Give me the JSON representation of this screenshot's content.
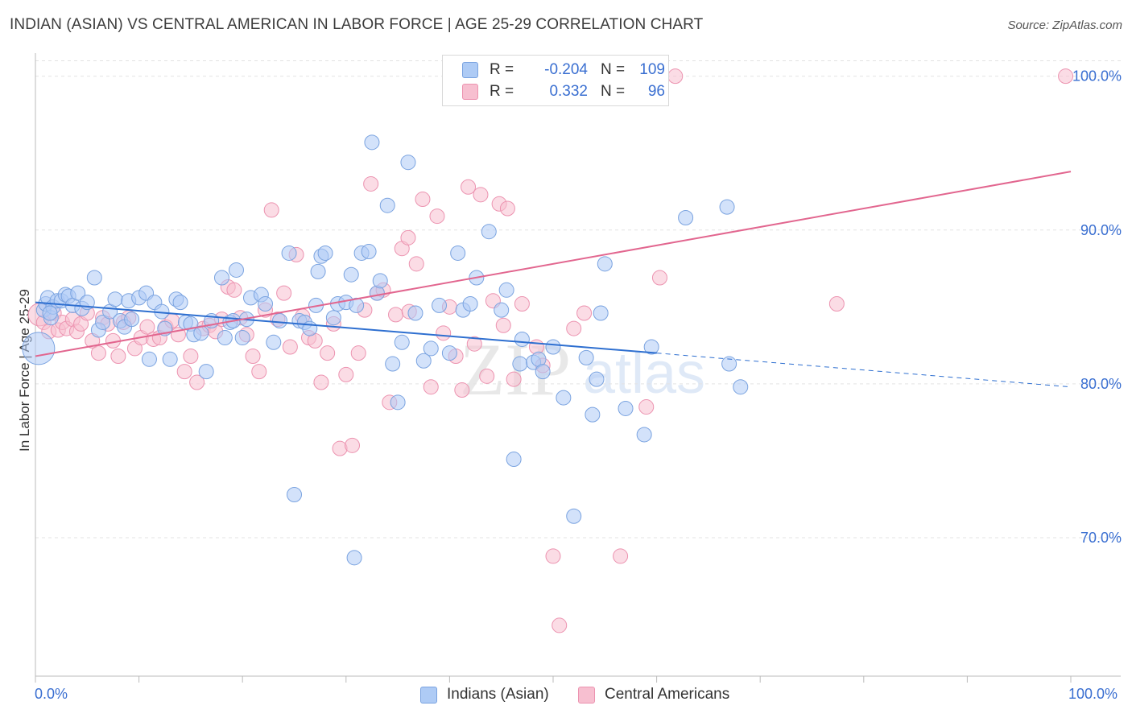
{
  "title": "INDIAN (ASIAN) VS CENTRAL AMERICAN IN LABOR FORCE | AGE 25-29 CORRELATION CHART",
  "source": "Source: ZipAtlas.com",
  "watermark": {
    "zip": "ZIP",
    "atlas": "atlas"
  },
  "colors": {
    "blue_fill": "#aecbf5",
    "blue_stroke": "#7aa3e0",
    "blue_line": "#2e6fd0",
    "pink_fill": "#f7bfd0",
    "pink_stroke": "#ec93b0",
    "pink_line": "#e2668f",
    "axis_text": "#3a6fd1",
    "grid": "#e3e3e3"
  },
  "legend_top": {
    "rows": [
      {
        "r_label": "R =",
        "r_value": "-0.204",
        "n_label": "N =",
        "n_value": "109"
      },
      {
        "r_label": "R =",
        "r_value": "0.332",
        "n_label": "N =",
        "n_value": "96"
      }
    ]
  },
  "legend_bottom": [
    "Indians (Asian)",
    "Central Americans"
  ],
  "chart_data": {
    "type": "scatter",
    "xlabel": "",
    "ylabel": "In Labor Force | Age 25-29",
    "xlim": [
      0,
      100
    ],
    "ylim": [
      61,
      101.5
    ],
    "x_tick_labels": [
      "0.0%",
      "100.0%"
    ],
    "y_ticks": [
      70,
      80,
      90,
      100
    ],
    "y_tick_labels": [
      "70.0%",
      "80.0%",
      "90.0%",
      "100.0%"
    ],
    "grid": true,
    "series": [
      {
        "name": "Indians (Asian)",
        "r": -0.204,
        "n": 109,
        "trend": {
          "x0": 0,
          "y0": 85.3,
          "x1": 60,
          "y1": 82.0,
          "dash_to_x": 100,
          "dash_to_y": 79.8
        },
        "points": [
          [
            0.3,
            82.3
          ],
          [
            0.8,
            84.8
          ],
          [
            1.0,
            85.2
          ],
          [
            1.2,
            85.6
          ],
          [
            1.5,
            84.3
          ],
          [
            1.7,
            85.0
          ],
          [
            2.1,
            85.4
          ],
          [
            2.5,
            85.4
          ],
          [
            2.9,
            85.8
          ],
          [
            3.2,
            85.7
          ],
          [
            3.6,
            85.1
          ],
          [
            4.1,
            85.9
          ],
          [
            4.5,
            84.9
          ],
          [
            5.0,
            85.3
          ],
          [
            5.7,
            86.9
          ],
          [
            6.1,
            83.5
          ],
          [
            6.5,
            84.0
          ],
          [
            7.2,
            84.7
          ],
          [
            7.7,
            85.5
          ],
          [
            8.2,
            84.1
          ],
          [
            8.6,
            83.7
          ],
          [
            9.0,
            85.4
          ],
          [
            9.3,
            84.2
          ],
          [
            10.0,
            85.6
          ],
          [
            10.7,
            85.9
          ],
          [
            11.0,
            81.6
          ],
          [
            11.5,
            85.3
          ],
          [
            12.2,
            84.7
          ],
          [
            13.0,
            81.6
          ],
          [
            13.6,
            85.5
          ],
          [
            14.0,
            85.3
          ],
          [
            14.5,
            84.0
          ],
          [
            15.0,
            83.9
          ],
          [
            15.3,
            83.2
          ],
          [
            16.0,
            83.3
          ],
          [
            16.5,
            80.8
          ],
          [
            17.0,
            84.1
          ],
          [
            18.0,
            86.9
          ],
          [
            18.3,
            83.0
          ],
          [
            18.8,
            84.0
          ],
          [
            19.1,
            84.1
          ],
          [
            19.4,
            87.4
          ],
          [
            20.4,
            84.2
          ],
          [
            20.8,
            85.6
          ],
          [
            21.8,
            85.8
          ],
          [
            22.2,
            85.2
          ],
          [
            23.0,
            82.7
          ],
          [
            23.6,
            84.1
          ],
          [
            24.5,
            88.5
          ],
          [
            25.0,
            72.8
          ],
          [
            25.5,
            84.1
          ],
          [
            26.0,
            84.0
          ],
          [
            26.5,
            83.6
          ],
          [
            27.1,
            85.1
          ],
          [
            27.3,
            87.3
          ],
          [
            27.6,
            88.3
          ],
          [
            28.0,
            88.5
          ],
          [
            28.8,
            84.3
          ],
          [
            29.2,
            85.2
          ],
          [
            30.0,
            85.3
          ],
          [
            30.5,
            87.1
          ],
          [
            30.8,
            68.7
          ],
          [
            31.0,
            85.1
          ],
          [
            31.5,
            88.5
          ],
          [
            32.2,
            88.6
          ],
          [
            32.5,
            95.7
          ],
          [
            33.0,
            85.9
          ],
          [
            33.3,
            86.7
          ],
          [
            34.0,
            91.6
          ],
          [
            34.5,
            81.3
          ],
          [
            35.0,
            78.8
          ],
          [
            35.4,
            82.7
          ],
          [
            36.0,
            94.4
          ],
          [
            36.7,
            84.6
          ],
          [
            37.5,
            81.5
          ],
          [
            38.2,
            82.3
          ],
          [
            39.0,
            85.1
          ],
          [
            40.0,
            82.0
          ],
          [
            40.8,
            88.5
          ],
          [
            41.3,
            84.8
          ],
          [
            42.6,
            86.9
          ],
          [
            43.8,
            89.9
          ],
          [
            45.0,
            84.8
          ],
          [
            45.5,
            86.1
          ],
          [
            46.2,
            75.1
          ],
          [
            46.8,
            81.3
          ],
          [
            47.0,
            82.9
          ],
          [
            48.1,
            81.4
          ],
          [
            48.6,
            81.6
          ],
          [
            49.0,
            80.8
          ],
          [
            50.0,
            82.4
          ],
          [
            51.0,
            79.1
          ],
          [
            52.0,
            71.4
          ],
          [
            53.2,
            81.7
          ],
          [
            53.8,
            78.0
          ],
          [
            54.2,
            80.3
          ],
          [
            54.6,
            84.6
          ],
          [
            55.0,
            87.8
          ],
          [
            57.0,
            78.4
          ],
          [
            58.8,
            76.7
          ],
          [
            59.5,
            82.4
          ],
          [
            62.8,
            90.8
          ],
          [
            66.8,
            91.5
          ],
          [
            67.0,
            81.3
          ],
          [
            68.1,
            79.8
          ],
          [
            42.0,
            85.2
          ],
          [
            20.0,
            83.0
          ],
          [
            12.5,
            83.6
          ],
          [
            1.4,
            84.6
          ]
        ]
      },
      {
        "name": "Central Americans",
        "r": 0.332,
        "n": 96,
        "trend": {
          "x0": 0,
          "y0": 81.8,
          "x1": 100,
          "y1": 93.8
        },
        "points": [
          [
            0.4,
            84.5
          ],
          [
            0.8,
            84.0
          ],
          [
            1.3,
            83.4
          ],
          [
            1.8,
            84.6
          ],
          [
            2.2,
            83.5
          ],
          [
            2.6,
            84.0
          ],
          [
            3.0,
            83.6
          ],
          [
            3.6,
            84.2
          ],
          [
            4.0,
            83.4
          ],
          [
            4.4,
            83.9
          ],
          [
            5.0,
            84.6
          ],
          [
            5.5,
            82.8
          ],
          [
            6.1,
            82.0
          ],
          [
            6.5,
            84.3
          ],
          [
            7.0,
            83.9
          ],
          [
            7.5,
            82.8
          ],
          [
            8.0,
            81.8
          ],
          [
            8.5,
            84.0
          ],
          [
            9.0,
            84.3
          ],
          [
            9.6,
            82.3
          ],
          [
            10.2,
            83.0
          ],
          [
            10.8,
            83.7
          ],
          [
            11.4,
            82.9
          ],
          [
            12.0,
            83.0
          ],
          [
            12.6,
            83.7
          ],
          [
            13.2,
            84.1
          ],
          [
            13.8,
            83.2
          ],
          [
            14.4,
            80.8
          ],
          [
            15.0,
            81.8
          ],
          [
            15.6,
            80.1
          ],
          [
            16.2,
            83.6
          ],
          [
            16.8,
            83.8
          ],
          [
            17.4,
            83.4
          ],
          [
            18.0,
            84.2
          ],
          [
            18.6,
            86.3
          ],
          [
            19.2,
            86.1
          ],
          [
            19.8,
            84.3
          ],
          [
            20.4,
            83.2
          ],
          [
            21.0,
            81.8
          ],
          [
            21.6,
            80.8
          ],
          [
            22.2,
            84.8
          ],
          [
            22.8,
            91.3
          ],
          [
            23.4,
            84.2
          ],
          [
            24.0,
            85.9
          ],
          [
            24.6,
            82.4
          ],
          [
            25.2,
            88.4
          ],
          [
            25.8,
            84.4
          ],
          [
            26.4,
            83.0
          ],
          [
            27.0,
            82.8
          ],
          [
            27.6,
            80.1
          ],
          [
            28.2,
            82.0
          ],
          [
            28.8,
            83.9
          ],
          [
            29.4,
            75.8
          ],
          [
            30.0,
            80.6
          ],
          [
            30.6,
            76.0
          ],
          [
            31.2,
            82.0
          ],
          [
            31.8,
            84.8
          ],
          [
            32.4,
            93.0
          ],
          [
            33.0,
            85.9
          ],
          [
            33.6,
            86.1
          ],
          [
            34.2,
            78.8
          ],
          [
            34.8,
            84.5
          ],
          [
            35.4,
            88.8
          ],
          [
            36.0,
            89.5
          ],
          [
            36.8,
            87.8
          ],
          [
            37.4,
            92.0
          ],
          [
            38.2,
            79.8
          ],
          [
            38.8,
            90.9
          ],
          [
            39.4,
            83.3
          ],
          [
            40.0,
            85.0
          ],
          [
            40.6,
            81.8
          ],
          [
            41.2,
            79.6
          ],
          [
            41.8,
            92.8
          ],
          [
            42.4,
            82.6
          ],
          [
            43.0,
            92.3
          ],
          [
            43.6,
            80.5
          ],
          [
            44.2,
            85.4
          ],
          [
            44.8,
            91.7
          ],
          [
            45.2,
            83.8
          ],
          [
            45.6,
            91.4
          ],
          [
            46.2,
            80.3
          ],
          [
            47.0,
            85.2
          ],
          [
            48.4,
            82.4
          ],
          [
            49.0,
            81.2
          ],
          [
            50.0,
            68.8
          ],
          [
            50.6,
            64.3
          ],
          [
            52.0,
            83.6
          ],
          [
            53.0,
            84.6
          ],
          [
            56.5,
            68.8
          ],
          [
            59.0,
            78.5
          ],
          [
            60.3,
            86.9
          ],
          [
            44.5,
            100.0
          ],
          [
            61.8,
            100.0
          ],
          [
            77.4,
            85.2
          ],
          [
            99.5,
            100.0
          ],
          [
            36.1,
            84.7
          ]
        ]
      }
    ]
  }
}
